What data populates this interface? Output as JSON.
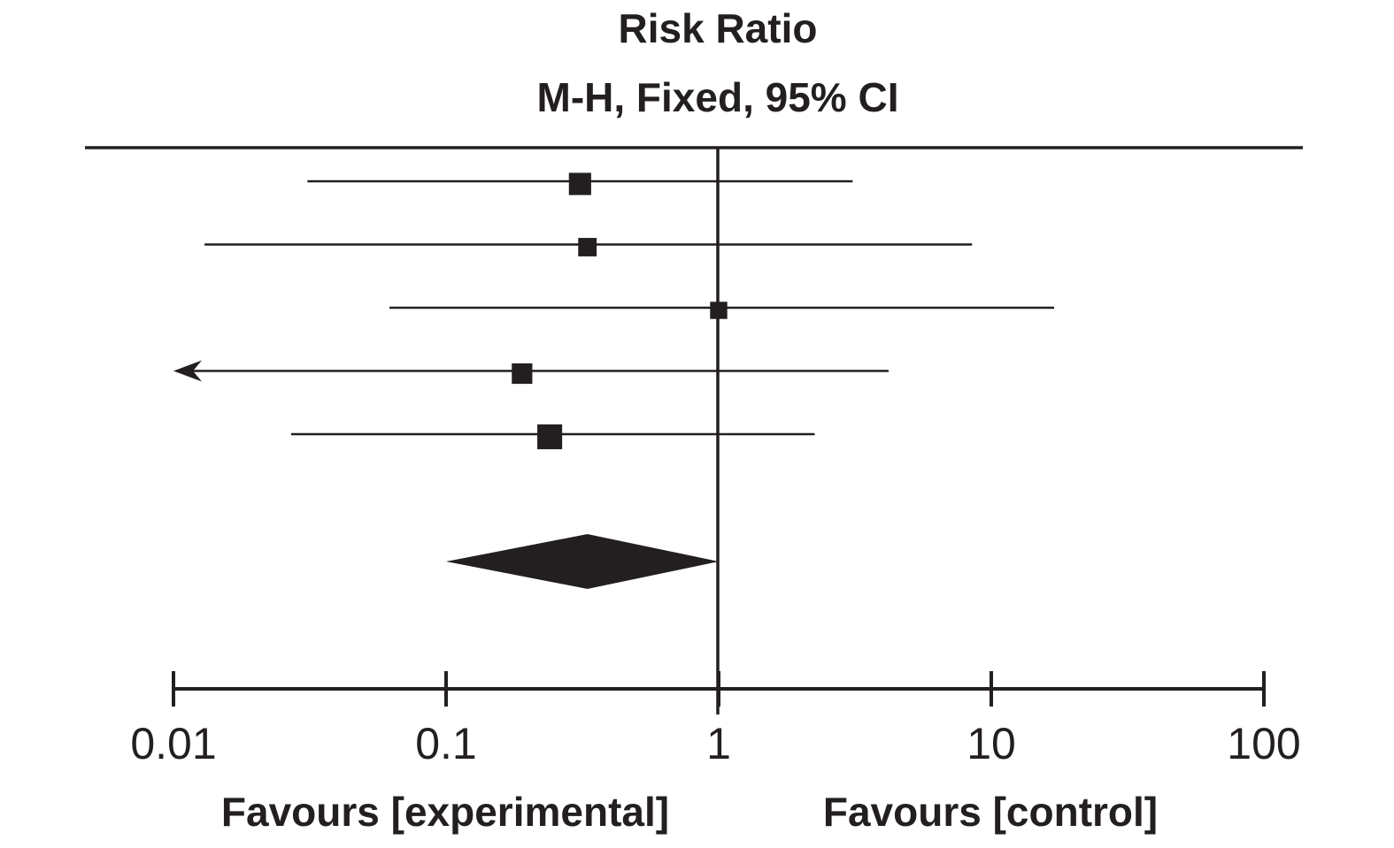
{
  "chart_data": {
    "type": "forest",
    "title": "Risk Ratio",
    "subtitle": "M-H, Fixed, 95% CI",
    "x_scale": "log",
    "xlim": [
      0.01,
      100
    ],
    "reference_line": 1,
    "ticks": [
      {
        "value": 0.01,
        "label": "0.01"
      },
      {
        "value": 0.1,
        "label": "0.1"
      },
      {
        "value": 1,
        "label": "1"
      },
      {
        "value": 10,
        "label": "10"
      },
      {
        "value": 100,
        "label": "100"
      }
    ],
    "favours_left": "Favours [experimental]",
    "favours_right": "Favours [control]",
    "studies": [
      {
        "estimate": 0.31,
        "lower": 0.031,
        "upper": 3.1,
        "weight": 0.22,
        "arrow_left": false
      },
      {
        "estimate": 0.33,
        "lower": 0.013,
        "upper": 8.5,
        "weight": 0.1,
        "arrow_left": false
      },
      {
        "estimate": 1.0,
        "lower": 0.062,
        "upper": 17.0,
        "weight": 0.07,
        "arrow_left": false
      },
      {
        "estimate": 0.19,
        "lower": 0.01,
        "upper": 4.2,
        "weight": 0.16,
        "arrow_left": true
      },
      {
        "estimate": 0.24,
        "lower": 0.027,
        "upper": 2.25,
        "weight": 0.33,
        "arrow_left": false
      }
    ],
    "pooled": {
      "estimate": 0.33,
      "lower": 0.1,
      "upper": 1.0
    },
    "colors": {
      "ink": "#231f20",
      "background": "#ffffff"
    }
  }
}
